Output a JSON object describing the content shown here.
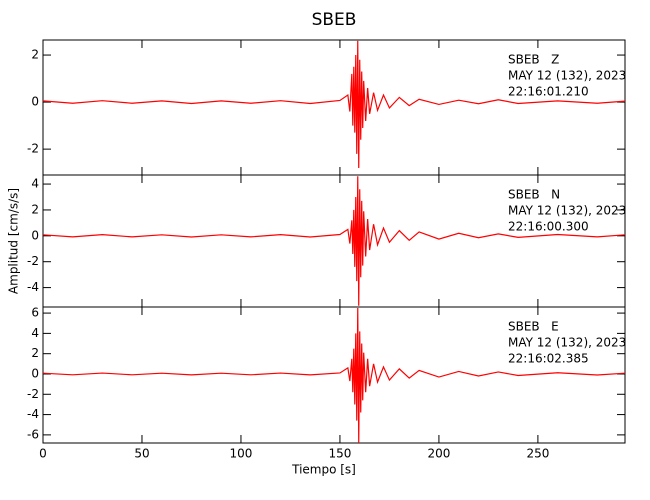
{
  "chart_data": [
    {
      "type": "line",
      "title": "SBEB",
      "annotations": [
        "SBEB   Z",
        "MAY 12 (132), 2023",
        "22:16:01.210"
      ],
      "xlim": [
        0,
        294
      ],
      "xticks": [
        0,
        50,
        100,
        150,
        200,
        250
      ],
      "ylim": [
        -3.1,
        2.64
      ],
      "yticks": [
        -2,
        0,
        2
      ],
      "series": [
        {
          "color": "#ff0000",
          "x": [
            0,
            15,
            30,
            45,
            60,
            75,
            90,
            105,
            120,
            135,
            150,
            154,
            155,
            156,
            156.5,
            157,
            157.5,
            158,
            158.5,
            159,
            159.5,
            160,
            160.5,
            161,
            161.5,
            162,
            163,
            164,
            165,
            167,
            169,
            172,
            175,
            180,
            185,
            190,
            200,
            210,
            220,
            230,
            240,
            260,
            280,
            294
          ],
          "values": [
            0.05,
            -0.05,
            0.06,
            -0.05,
            0.05,
            -0.06,
            0.05,
            -0.05,
            0.06,
            -0.06,
            0.07,
            0.3,
            -0.4,
            1.2,
            -1.0,
            1.5,
            -1.3,
            2.0,
            -2.2,
            2.6,
            -2.8,
            1.8,
            -1.6,
            1.3,
            -1.1,
            0.9,
            -0.8,
            0.6,
            -0.5,
            0.4,
            -0.35,
            0.3,
            -0.25,
            0.2,
            -0.15,
            0.12,
            -0.1,
            0.08,
            -0.07,
            0.1,
            -0.06,
            0.05,
            -0.05,
            0.04
          ]
        }
      ]
    },
    {
      "type": "line",
      "ylabel": "Amplitud [cm/s/s]",
      "annotations": [
        "SBEB   N",
        "MAY 12 (132), 2023",
        "22:16:00.300"
      ],
      "xlim": [
        0,
        294
      ],
      "xticks": [
        0,
        50,
        100,
        150,
        200,
        250
      ],
      "ylim": [
        -5.5,
        4.7
      ],
      "yticks": [
        -4,
        -2,
        0,
        2,
        4
      ],
      "series": [
        {
          "color": "#ff0000",
          "x": [
            0,
            15,
            30,
            45,
            60,
            75,
            90,
            105,
            120,
            135,
            150,
            154,
            155,
            156,
            156.5,
            157,
            157.5,
            158,
            158.5,
            159,
            159.5,
            160,
            160.5,
            161,
            161.5,
            162,
            163,
            164,
            165,
            167,
            169,
            172,
            175,
            180,
            185,
            190,
            200,
            210,
            220,
            230,
            240,
            260,
            280,
            294
          ],
          "values": [
            0.08,
            -0.08,
            0.09,
            -0.08,
            0.08,
            -0.09,
            0.08,
            -0.08,
            0.09,
            -0.09,
            0.1,
            0.5,
            -0.6,
            1.2,
            -1.4,
            2.0,
            -2.4,
            3.0,
            -3.5,
            4.6,
            -5.4,
            3.6,
            -3.2,
            2.7,
            -2.3,
            1.9,
            -1.6,
            1.3,
            -1.1,
            0.9,
            -0.7,
            0.6,
            -0.5,
            0.4,
            -0.35,
            0.3,
            -0.25,
            0.2,
            -0.15,
            0.15,
            -0.12,
            0.1,
            -0.08,
            0.08
          ]
        }
      ]
    },
    {
      "type": "line",
      "xlabel": "Tiempo [s]",
      "annotations": [
        "SBEB   E",
        "MAY 12 (132), 2023",
        "22:16:02.385"
      ],
      "xlim": [
        0,
        294
      ],
      "xticks": [
        0,
        50,
        100,
        150,
        200,
        250
      ],
      "ylim": [
        -6.8,
        6.6
      ],
      "yticks": [
        -6,
        -4,
        -2,
        0,
        2,
        4,
        6
      ],
      "series": [
        {
          "color": "#ff0000",
          "x": [
            0,
            15,
            30,
            45,
            60,
            75,
            90,
            105,
            120,
            135,
            150,
            154,
            155,
            156,
            156.5,
            157,
            157.5,
            158,
            158.5,
            159,
            159.5,
            160,
            160.5,
            161,
            161.5,
            162,
            163,
            164,
            165,
            167,
            169,
            172,
            175,
            180,
            185,
            190,
            200,
            210,
            220,
            230,
            240,
            260,
            280,
            294
          ],
          "values": [
            0.08,
            -0.08,
            0.09,
            -0.08,
            0.08,
            -0.09,
            0.08,
            -0.08,
            0.09,
            -0.09,
            0.1,
            0.6,
            -0.7,
            1.5,
            -1.8,
            2.5,
            -3.0,
            4.0,
            -4.6,
            6.5,
            -6.8,
            4.2,
            -3.8,
            3.0,
            -2.6,
            2.1,
            -1.8,
            1.5,
            -1.2,
            1.0,
            -0.8,
            0.7,
            -0.6,
            0.5,
            -0.4,
            0.35,
            -0.3,
            0.25,
            -0.2,
            0.2,
            -0.15,
            0.12,
            -0.1,
            0.08
          ]
        }
      ]
    }
  ]
}
